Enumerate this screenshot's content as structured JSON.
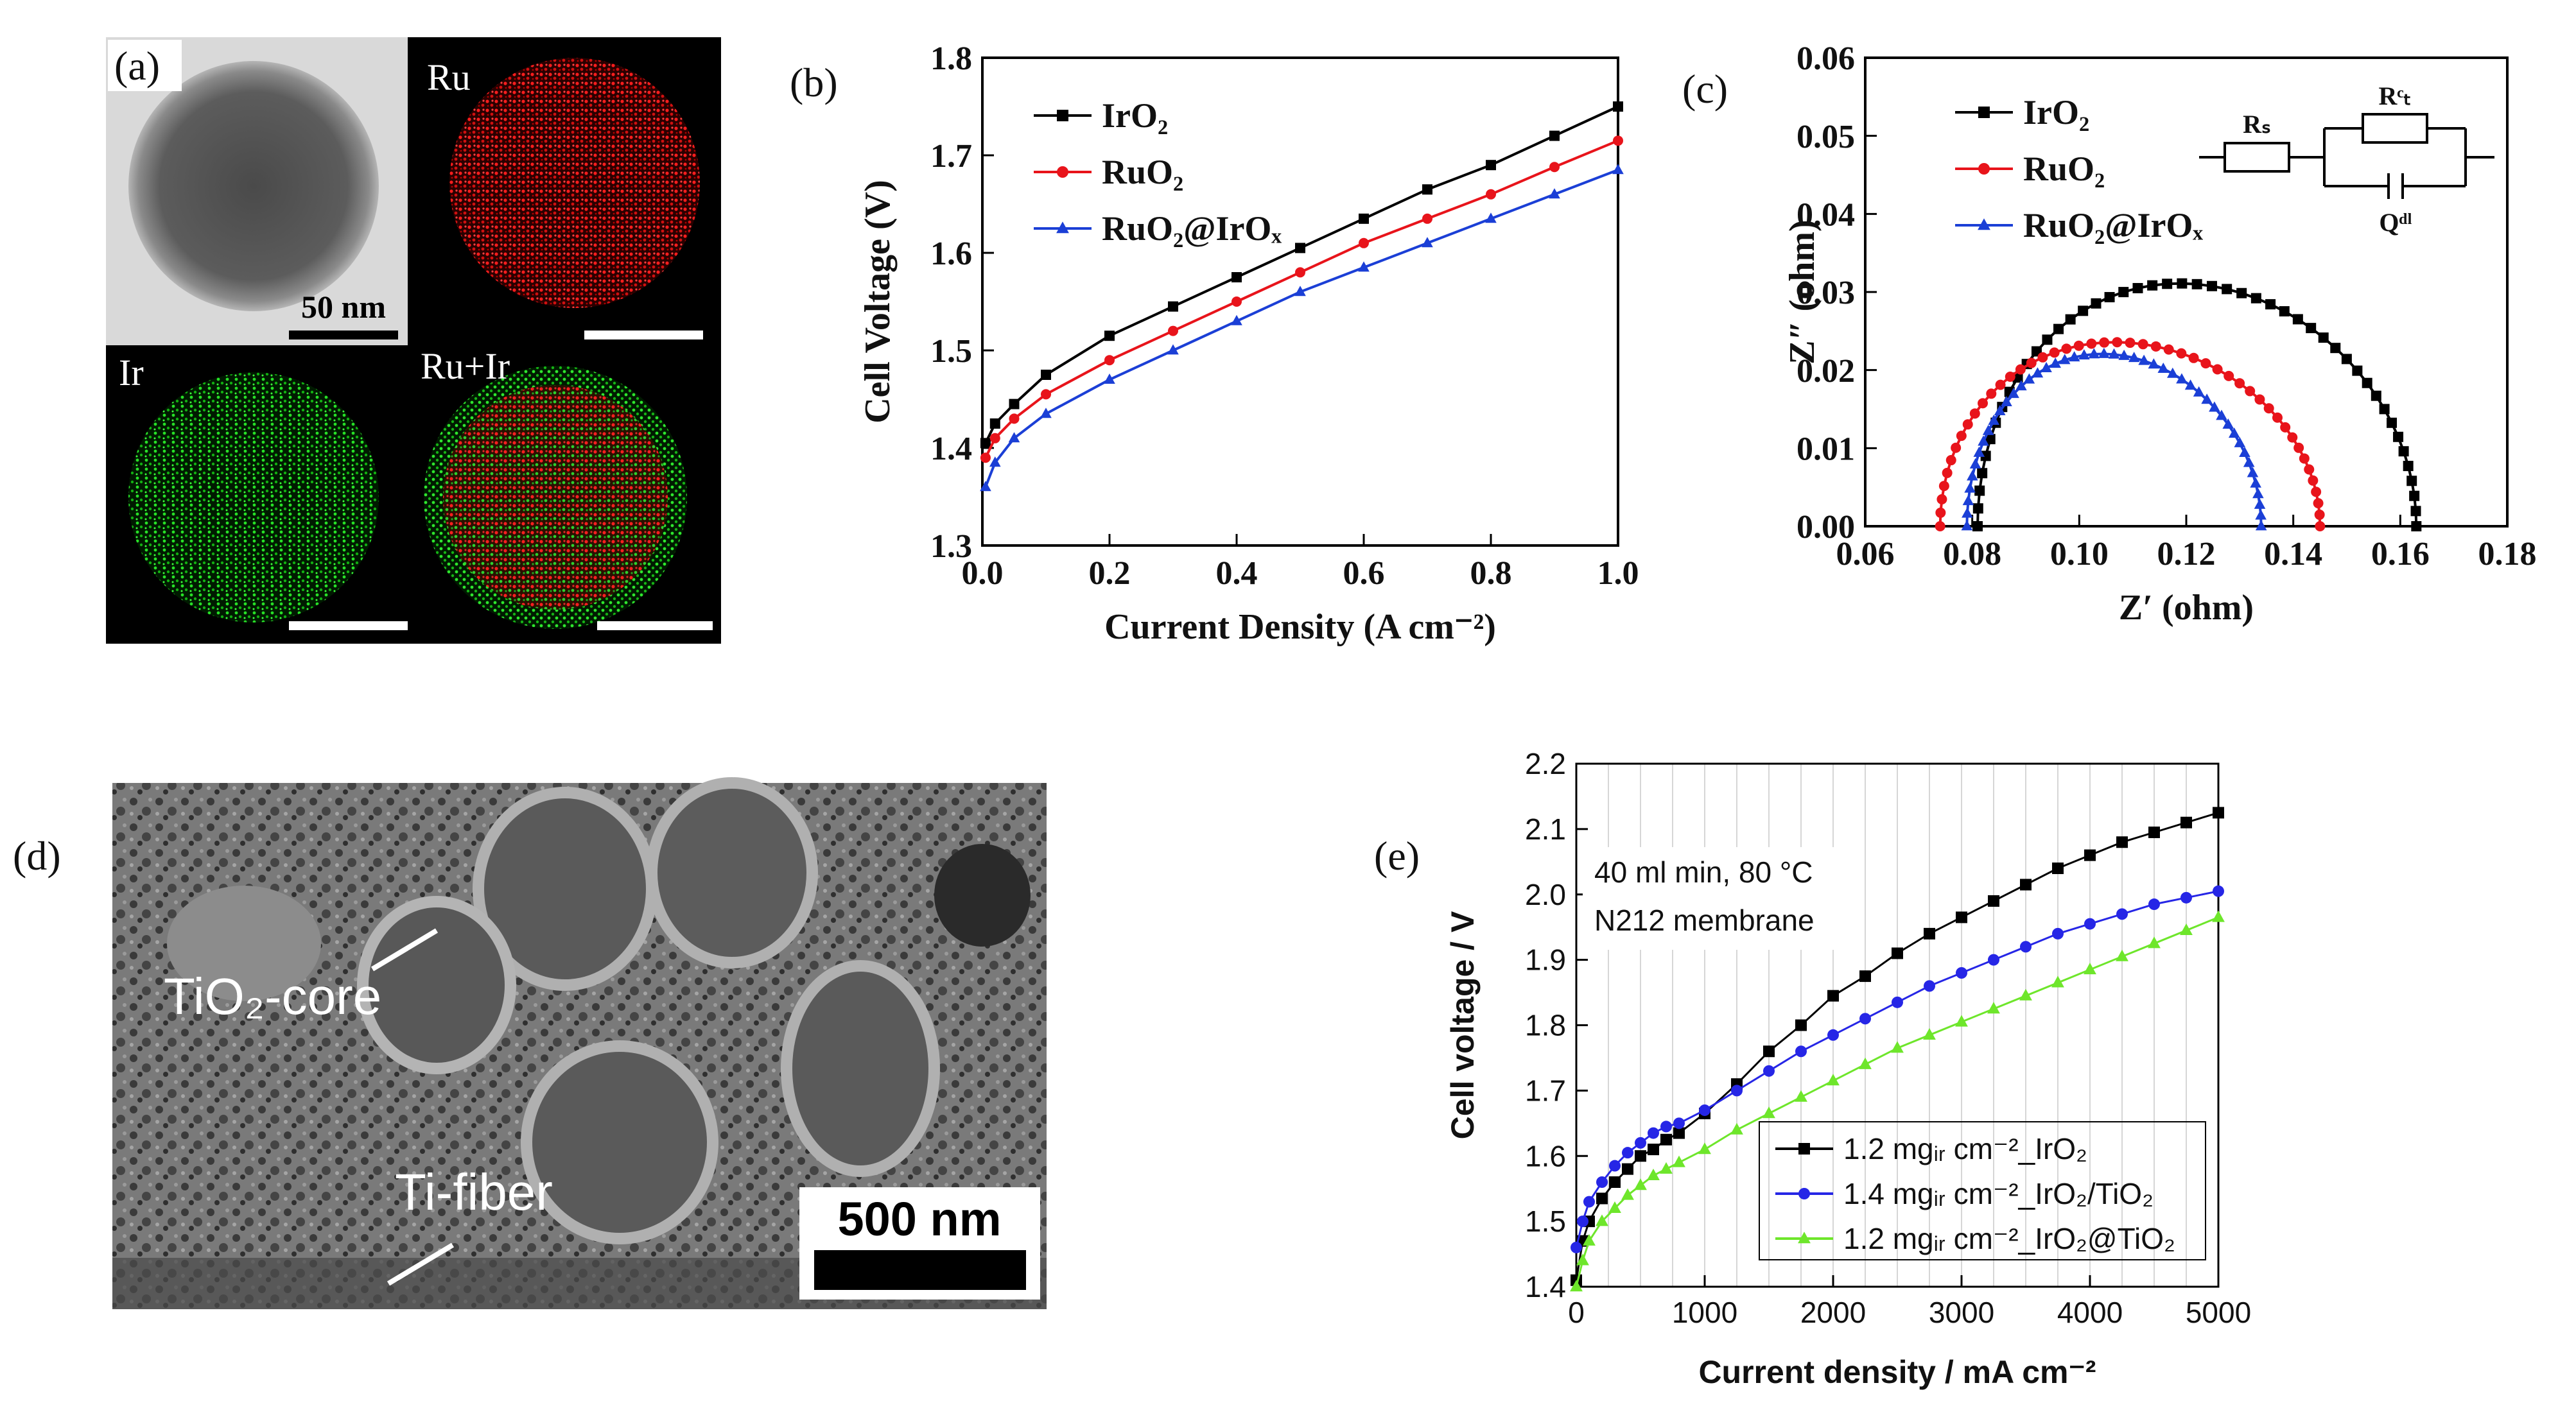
{
  "panels": {
    "a": {
      "letter": "(a)",
      "map_labels": [
        "Ru",
        "Ir",
        "Ru+Ir"
      ],
      "tem_scale": "50 nm"
    },
    "d": {
      "letter": "(d)",
      "labels": {
        "core": "TiO₂-core",
        "fiber": "Ti-fiber"
      },
      "scale": "500 nm"
    }
  },
  "chart_data": [
    {
      "id": "b",
      "letter": "(b)",
      "type": "line",
      "xlabel": "Current Density (A cm⁻²)",
      "ylabel": "Cell Voltage (V)",
      "xlim": [
        0,
        1.0
      ],
      "ylim": [
        1.3,
        1.8
      ],
      "xticks": [
        "0.0",
        "0.2",
        "0.4",
        "0.6",
        "0.8",
        "1.0"
      ],
      "yticks": [
        "1.3",
        "1.4",
        "1.5",
        "1.6",
        "1.7",
        "1.8"
      ],
      "x": [
        0.005,
        0.02,
        0.05,
        0.1,
        0.2,
        0.3,
        0.4,
        0.5,
        0.6,
        0.7,
        0.8,
        0.9,
        1.0
      ],
      "series": [
        {
          "name": "IrO₂",
          "color": "#000000",
          "marker": "square",
          "values": [
            1.405,
            1.425,
            1.445,
            1.475,
            1.515,
            1.545,
            1.575,
            1.605,
            1.635,
            1.665,
            1.69,
            1.72,
            1.75
          ]
        },
        {
          "name": "RuO₂",
          "color": "#e8141b",
          "marker": "circle",
          "values": [
            1.39,
            1.41,
            1.43,
            1.455,
            1.49,
            1.52,
            1.55,
            1.58,
            1.61,
            1.635,
            1.66,
            1.688,
            1.715
          ]
        },
        {
          "name": "RuO₂@IrOₓ",
          "color": "#1b3fd6",
          "marker": "triangle",
          "values": [
            1.36,
            1.385,
            1.41,
            1.435,
            1.47,
            1.5,
            1.53,
            1.56,
            1.585,
            1.61,
            1.635,
            1.66,
            1.685
          ]
        }
      ],
      "legend": "top-left"
    },
    {
      "id": "c",
      "letter": "(c)",
      "type": "scatter",
      "xlabel": "Z′ (ohm)",
      "ylabel": "Z″ (ohm)",
      "xlim": [
        0.06,
        0.18
      ],
      "ylim": [
        0.0,
        0.06
      ],
      "xticks": [
        "0.06",
        "0.08",
        "0.10",
        "0.12",
        "0.14",
        "0.16",
        "0.18"
      ],
      "yticks": [
        "0.00",
        "0.01",
        "0.02",
        "0.03",
        "0.04",
        "0.05",
        "0.06"
      ],
      "series": [
        {
          "name": "IrO₂",
          "color": "#000000",
          "marker": "square",
          "semicircle": {
            "x_start": 0.081,
            "x_end": 0.163,
            "peak": 0.031
          }
        },
        {
          "name": "RuO₂",
          "color": "#e8141b",
          "marker": "circle",
          "semicircle": {
            "x_start": 0.074,
            "x_end": 0.145,
            "peak": 0.0235
          }
        },
        {
          "name": "RuO₂@IrOₓ",
          "color": "#1b3fd6",
          "marker": "triangle",
          "semicircle": {
            "x_start": 0.079,
            "x_end": 0.134,
            "peak": 0.022
          }
        }
      ],
      "circuit_labels": {
        "rs": "Rₛ",
        "rct": "Rᶜₜ",
        "qdl": "Qᵈˡ"
      },
      "legend": "top-left"
    },
    {
      "id": "e",
      "letter": "(e)",
      "type": "line",
      "xlabel": "Current density / mA cm⁻²",
      "ylabel": "Cell voltage / V",
      "xlim": [
        0,
        5000
      ],
      "ylim": [
        1.4,
        2.2
      ],
      "xticks": [
        "0",
        "1000",
        "2000",
        "3000",
        "4000",
        "5000"
      ],
      "yticks": [
        "1.4",
        "1.5",
        "1.6",
        "1.7",
        "1.8",
        "1.9",
        "2.0",
        "2.1",
        "2.2"
      ],
      "annotation": [
        "40 ml min, 80 °C",
        "N212 membrane"
      ],
      "x": [
        0,
        50,
        100,
        200,
        300,
        400,
        500,
        600,
        700,
        800,
        1000,
        1250,
        1500,
        1750,
        2000,
        2250,
        2500,
        2750,
        3000,
        3250,
        3500,
        3750,
        4000,
        4250,
        4500,
        4750,
        5000
      ],
      "series": [
        {
          "name": "1.2 mgᵢᵣ cm⁻²_IrO₂",
          "color": "#000000",
          "marker": "square",
          "values": [
            1.41,
            1.47,
            1.5,
            1.535,
            1.56,
            1.58,
            1.6,
            1.61,
            1.625,
            1.635,
            1.665,
            1.71,
            1.76,
            1.8,
            1.845,
            1.875,
            1.91,
            1.94,
            1.965,
            1.99,
            2.015,
            2.04,
            2.06,
            2.08,
            2.095,
            2.11,
            2.125
          ]
        },
        {
          "name": "1.4 mgᵢᵣ cm⁻²_IrO₂/TiO₂",
          "color": "#2626e6",
          "marker": "circle",
          "values": [
            1.46,
            1.5,
            1.53,
            1.56,
            1.585,
            1.605,
            1.62,
            1.635,
            1.645,
            1.65,
            1.67,
            1.7,
            1.73,
            1.76,
            1.785,
            1.81,
            1.835,
            1.86,
            1.88,
            1.9,
            1.92,
            1.94,
            1.955,
            1.97,
            1.985,
            1.995,
            2.005
          ]
        },
        {
          "name": "1.2 mgᵢᵣ cm⁻²_IrO₂@TiO₂",
          "color": "#6ee62b",
          "marker": "triangle",
          "values": [
            1.4,
            1.44,
            1.47,
            1.5,
            1.52,
            1.54,
            1.555,
            1.57,
            1.58,
            1.59,
            1.61,
            1.64,
            1.665,
            1.69,
            1.715,
            1.74,
            1.765,
            1.785,
            1.805,
            1.825,
            1.845,
            1.865,
            1.885,
            1.905,
            1.925,
            1.945,
            1.965
          ]
        }
      ],
      "legend": "bottom-right"
    }
  ]
}
